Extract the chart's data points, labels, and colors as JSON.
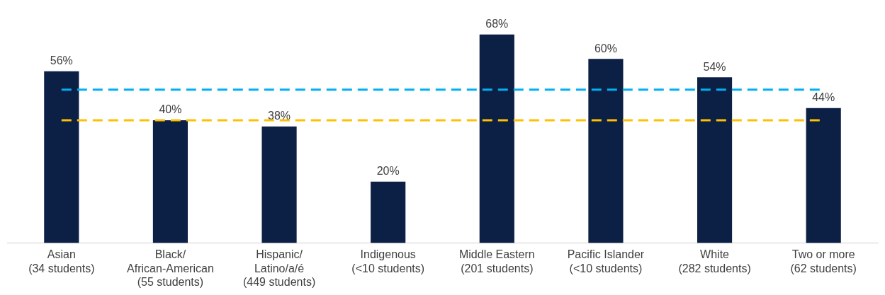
{
  "chart_data": {
    "type": "bar",
    "categories": [
      "Asian\n(34 students)",
      "Black/\nAfrican-American\n(55 students)",
      "Hispanic/\nLatino/a/é\n(449 students)",
      "Indigenous\n(<10 students)",
      "Middle Eastern\n(201 students)",
      "Pacific Islander\n(<10 students)",
      "White\n(282 students)",
      "Two or more\n(62 students)"
    ],
    "values": [
      56,
      40,
      38,
      20,
      68,
      60,
      54,
      44
    ],
    "value_labels": [
      "56%",
      "40%",
      "38%",
      "20%",
      "68%",
      "60%",
      "54%",
      "44%"
    ],
    "color": "#0c1f45",
    "ref_lines": [
      {
        "axis": "y",
        "value": 50,
        "color": "#00b0f0",
        "line_style": "dashed"
      },
      {
        "axis": "y",
        "value": 40,
        "color": "#ffc000",
        "line_style": "dashed"
      }
    ],
    "grid": false,
    "legend": false
  }
}
